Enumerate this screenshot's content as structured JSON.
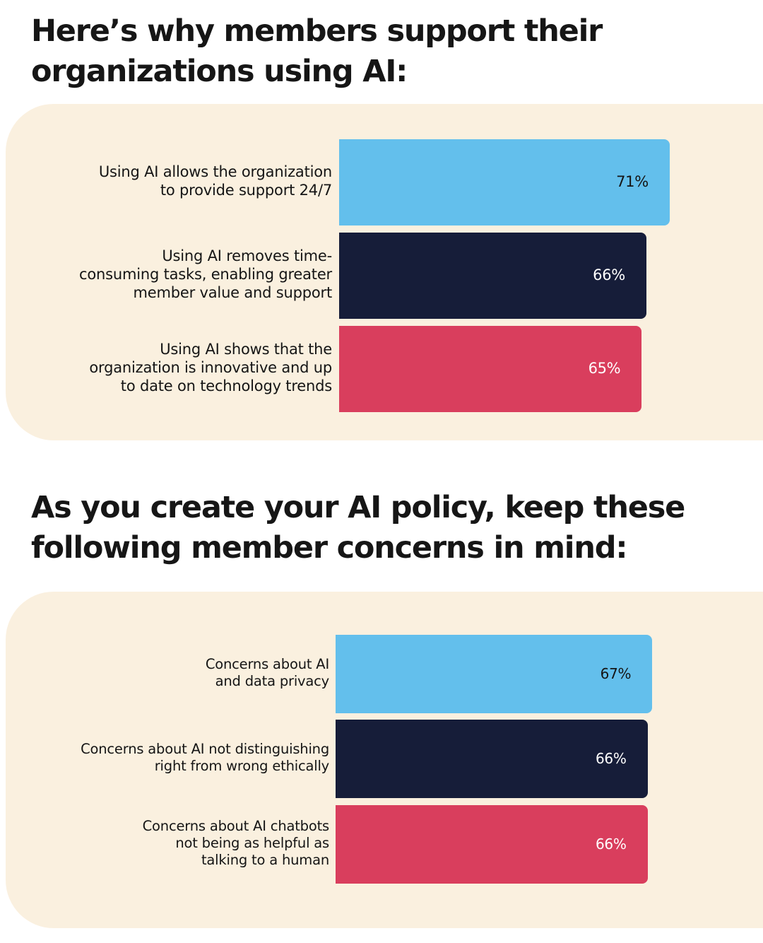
{
  "headings": [
    "Here’s why members support their organizations using AI:",
    "As you create your AI policy, keep these following member concerns in mind:"
  ],
  "colors": {
    "panel_bg": "#faf0df",
    "bar_blue": "#63bfec",
    "bar_navy": "#161d39",
    "bar_red": "#d93e5d",
    "text_dark": "#151515",
    "text_light": "#ffffff"
  },
  "chart_data": [
    {
      "type": "bar",
      "orientation": "horizontal",
      "title": "Here’s why members support their organizations using AI:",
      "categories": [
        "Using AI allows the organization to provide support 24/7",
        "Using AI removes time-consuming tasks, enabling greater member value and support",
        "Using AI shows that the organization is innovative and up to date on technology trends"
      ],
      "label_lines": [
        [
          "Using AI allows the organization",
          "to provide support 24/7"
        ],
        [
          "Using AI removes time-",
          "consuming tasks, enabling greater",
          "member value and support"
        ],
        [
          "Using AI shows that the",
          "organization is innovative and up",
          "to date on technology trends"
        ]
      ],
      "values": [
        71,
        66,
        65
      ],
      "value_labels": [
        "71%",
        "66%",
        "65%"
      ],
      "bar_colors": [
        "#63bfec",
        "#161d39",
        "#d93e5d"
      ],
      "xlim": [
        0,
        100
      ],
      "grid": false
    },
    {
      "type": "bar",
      "orientation": "horizontal",
      "title": "As you create your AI policy, keep these following member concerns in mind:",
      "categories": [
        "Concerns about AI and data privacy",
        "Concerns about AI not distinguishing right from wrong ethically",
        "Concerns about AI chatbots not being as helpful as talking to a human"
      ],
      "label_lines": [
        [
          "Concerns about AI",
          "and data privacy"
        ],
        [
          "Concerns about AI not distinguishing",
          "right from wrong ethically"
        ],
        [
          "Concerns about AI chatbots",
          "not being as helpful as",
          "talking to a human"
        ]
      ],
      "values": [
        67,
        66,
        66
      ],
      "value_labels": [
        "67%",
        "66%",
        "66%"
      ],
      "bar_colors": [
        "#63bfec",
        "#161d39",
        "#d93e5d"
      ],
      "xlim": [
        0,
        100
      ],
      "grid": false
    }
  ]
}
